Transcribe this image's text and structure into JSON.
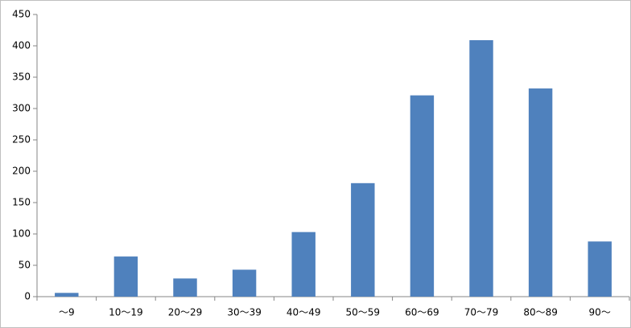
{
  "chart_data": {
    "type": "bar",
    "categories": [
      "〜9",
      "10〜19",
      "20〜29",
      "30〜39",
      "40〜49",
      "50〜59",
      "60〜69",
      "70〜79",
      "80〜89",
      "90〜"
    ],
    "values": [
      6,
      64,
      29,
      43,
      103,
      181,
      321,
      409,
      332,
      88
    ],
    "color": "#4f81bd",
    "ylim": [
      0,
      450
    ],
    "yticks": [
      0,
      50,
      100,
      150,
      200,
      250,
      300,
      350,
      400,
      450
    ],
    "grid": false
  }
}
